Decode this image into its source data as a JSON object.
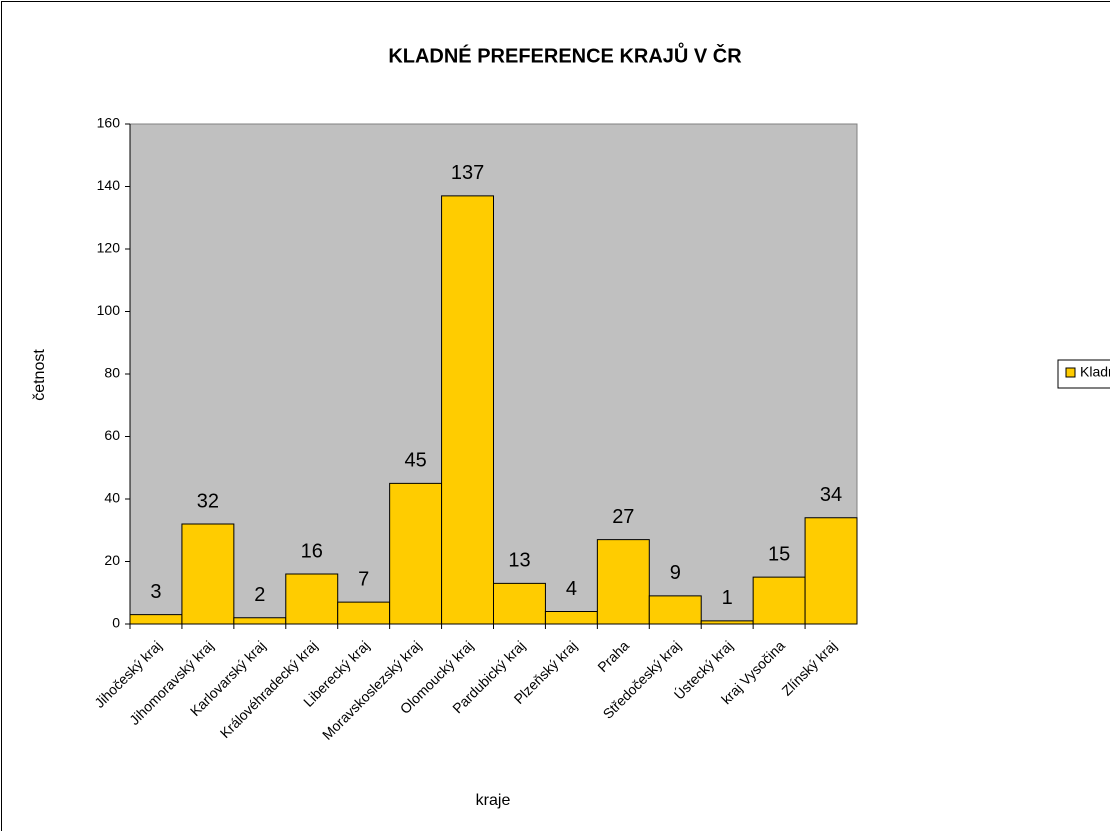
{
  "chart_data": {
    "type": "bar",
    "title": "KLADNÉ PREFERENCE KRAJŮ V ČR",
    "x_label": "kraje",
    "y_label": "četnost",
    "categories": [
      "Jihočeský kraj",
      "Jihomoravský kraj",
      "Karlovarský kraj",
      "Královéhradecký kraj",
      "Liberecký kraj",
      "Moravskoslezský kraj",
      "Olomoucký kraj",
      "Pardubický kraj",
      "Plzeňský kraj",
      "Praha",
      "Středočeský kraj",
      "Ústecký kraj",
      "kraj Vysočina",
      "Zlínský kraj"
    ],
    "series": [
      {
        "name": "Kladné preference krajů v ČR",
        "color": "#ffcc00",
        "values": [
          3,
          32,
          2,
          16,
          7,
          45,
          137,
          13,
          4,
          27,
          9,
          1,
          15,
          34
        ]
      }
    ],
    "ylim": [
      0,
      160
    ],
    "yticks": [
      0,
      20,
      40,
      60,
      80,
      100,
      120,
      140,
      160
    ],
    "grid": false,
    "legend": "right"
  }
}
